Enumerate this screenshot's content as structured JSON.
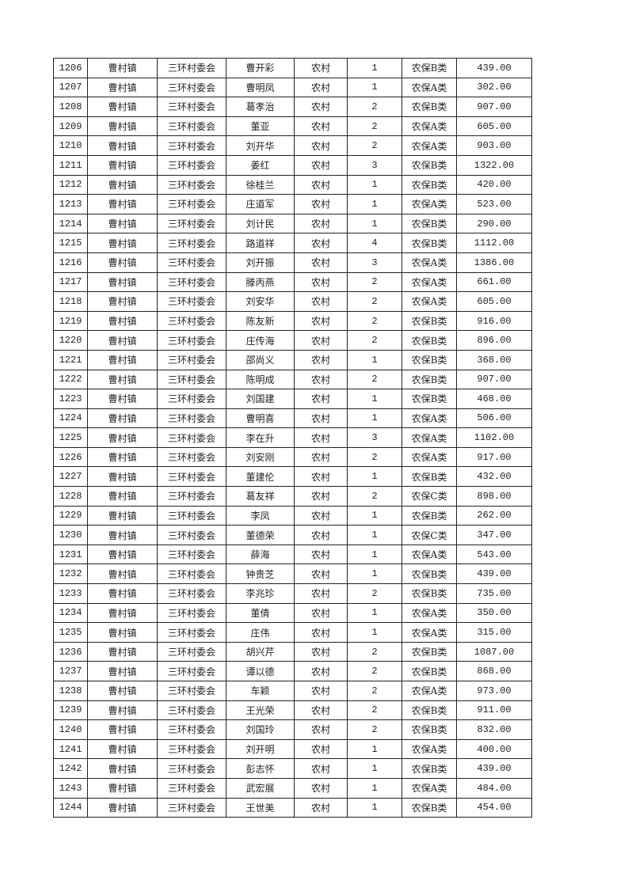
{
  "table": {
    "rows": [
      [
        "1206",
        "曹村镇",
        "三环村委会",
        "曹开彩",
        "农村",
        "1",
        "农保B类",
        "439.00"
      ],
      [
        "1207",
        "曹村镇",
        "三环村委会",
        "曹明凤",
        "农村",
        "1",
        "农保A类",
        "302.00"
      ],
      [
        "1208",
        "曹村镇",
        "三环村委会",
        "葛孝治",
        "农村",
        "2",
        "农保B类",
        "907.00"
      ],
      [
        "1209",
        "曹村镇",
        "三环村委会",
        "董亚",
        "农村",
        "2",
        "农保A类",
        "605.00"
      ],
      [
        "1210",
        "曹村镇",
        "三环村委会",
        "刘开华",
        "农村",
        "2",
        "农保A类",
        "903.00"
      ],
      [
        "1211",
        "曹村镇",
        "三环村委会",
        "姜红",
        "农村",
        "3",
        "农保B类",
        "1322.00"
      ],
      [
        "1212",
        "曹村镇",
        "三环村委会",
        "徐桂兰",
        "农村",
        "1",
        "农保B类",
        "420.00"
      ],
      [
        "1213",
        "曹村镇",
        "三环村委会",
        "庄道军",
        "农村",
        "1",
        "农保A类",
        "523.00"
      ],
      [
        "1214",
        "曹村镇",
        "三环村委会",
        "刘计民",
        "农村",
        "1",
        "农保B类",
        "290.00"
      ],
      [
        "1215",
        "曹村镇",
        "三环村委会",
        "路道祥",
        "农村",
        "4",
        "农保B类",
        "1112.00"
      ],
      [
        "1216",
        "曹村镇",
        "三环村委会",
        "刘开振",
        "农村",
        "3",
        "农保A类",
        "1386.00"
      ],
      [
        "1217",
        "曹村镇",
        "三环村委会",
        "滕丙燕",
        "农村",
        "2",
        "农保A类",
        "661.00"
      ],
      [
        "1218",
        "曹村镇",
        "三环村委会",
        "刘安华",
        "农村",
        "2",
        "农保A类",
        "605.00"
      ],
      [
        "1219",
        "曹村镇",
        "三环村委会",
        "陈友新",
        "农村",
        "2",
        "农保B类",
        "916.00"
      ],
      [
        "1220",
        "曹村镇",
        "三环村委会",
        "庄传海",
        "农村",
        "2",
        "农保B类",
        "896.00"
      ],
      [
        "1221",
        "曹村镇",
        "三环村委会",
        "邵尚义",
        "农村",
        "1",
        "农保B类",
        "368.00"
      ],
      [
        "1222",
        "曹村镇",
        "三环村委会",
        "陈明成",
        "农村",
        "2",
        "农保B类",
        "907.00"
      ],
      [
        "1223",
        "曹村镇",
        "三环村委会",
        "刘国建",
        "农村",
        "1",
        "农保B类",
        "468.00"
      ],
      [
        "1224",
        "曹村镇",
        "三环村委会",
        "曹明喜",
        "农村",
        "1",
        "农保A类",
        "506.00"
      ],
      [
        "1225",
        "曹村镇",
        "三环村委会",
        "李在升",
        "农村",
        "3",
        "农保A类",
        "1102.00"
      ],
      [
        "1226",
        "曹村镇",
        "三环村委会",
        "刘安刚",
        "农村",
        "2",
        "农保A类",
        "917.00"
      ],
      [
        "1227",
        "曹村镇",
        "三环村委会",
        "董建伦",
        "农村",
        "1",
        "农保B类",
        "432.00"
      ],
      [
        "1228",
        "曹村镇",
        "三环村委会",
        "葛友祥",
        "农村",
        "2",
        "农保C类",
        "898.00"
      ],
      [
        "1229",
        "曹村镇",
        "三环村委会",
        "李凤",
        "农村",
        "1",
        "农保B类",
        "262.00"
      ],
      [
        "1230",
        "曹村镇",
        "三环村委会",
        "董德荣",
        "农村",
        "1",
        "农保C类",
        "347.00"
      ],
      [
        "1231",
        "曹村镇",
        "三环村委会",
        "薛海",
        "农村",
        "1",
        "农保A类",
        "543.00"
      ],
      [
        "1232",
        "曹村镇",
        "三环村委会",
        "钟贵芝",
        "农村",
        "1",
        "农保B类",
        "439.00"
      ],
      [
        "1233",
        "曹村镇",
        "三环村委会",
        "李兆珍",
        "农村",
        "2",
        "农保B类",
        "735.00"
      ],
      [
        "1234",
        "曹村镇",
        "三环村委会",
        "董倩",
        "农村",
        "1",
        "农保A类",
        "350.00"
      ],
      [
        "1235",
        "曹村镇",
        "三环村委会",
        "庄伟",
        "农村",
        "1",
        "农保A类",
        "315.00"
      ],
      [
        "1236",
        "曹村镇",
        "三环村委会",
        "胡兴芹",
        "农村",
        "2",
        "农保B类",
        "1087.00"
      ],
      [
        "1237",
        "曹村镇",
        "三环村委会",
        "谭以德",
        "农村",
        "2",
        "农保B类",
        "868.00"
      ],
      [
        "1238",
        "曹村镇",
        "三环村委会",
        "车颖",
        "农村",
        "2",
        "农保A类",
        "973.00"
      ],
      [
        "1239",
        "曹村镇",
        "三环村委会",
        "王光荣",
        "农村",
        "2",
        "农保B类",
        "911.00"
      ],
      [
        "1240",
        "曹村镇",
        "三环村委会",
        "刘国玲",
        "农村",
        "2",
        "农保B类",
        "832.00"
      ],
      [
        "1241",
        "曹村镇",
        "三环村委会",
        "刘开明",
        "农村",
        "1",
        "农保A类",
        "400.00"
      ],
      [
        "1242",
        "曹村镇",
        "三环村委会",
        "彭志怀",
        "农村",
        "1",
        "农保B类",
        "439.00"
      ],
      [
        "1243",
        "曹村镇",
        "三环村委会",
        "武宏展",
        "农村",
        "1",
        "农保A类",
        "484.00"
      ],
      [
        "1244",
        "曹村镇",
        "三环村委会",
        "王世美",
        "农村",
        "1",
        "农保B类",
        "454.00"
      ]
    ]
  }
}
